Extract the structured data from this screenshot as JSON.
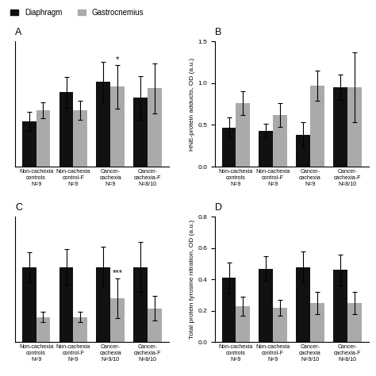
{
  "chart_data": [
    {
      "type": "bar",
      "title": "A",
      "categories": [
        "Non-cachexia\ncontrols\nN=9",
        "Non-cachexia\ncontrol-F\nN=9",
        "Cancer-\ncachexia\nN=9",
        "Cancer-\ncachexia-F\nN=8/10"
      ],
      "series": [
        {
          "name": "Diaphragm",
          "color": "#111111",
          "values": [
            0.58,
            0.95,
            1.08,
            0.88
          ],
          "errors": [
            0.12,
            0.2,
            0.26,
            0.28
          ]
        },
        {
          "name": "Gastrocnemius",
          "color": "#aaaaaa",
          "values": [
            0.72,
            0.72,
            1.02,
            1.0
          ],
          "errors": [
            0.1,
            0.12,
            0.28,
            0.32
          ],
          "sig_labels": [
            null,
            null,
            "*",
            null
          ]
        }
      ],
      "ylim": [
        0,
        1.6
      ],
      "yticks": [],
      "legend": "upper left"
    },
    {
      "type": "bar",
      "title": "B",
      "ylabel": "HNE-protein adducts, OD (a.u.)",
      "categories": [
        "Non-cachexia\ncontrols\nN=9",
        "Non-cachexia\ncontrol-F\nN=9",
        "Cancer-\ncachexia\nN=9",
        "Cancer-\ncachexia-F\nN=8/10"
      ],
      "series": [
        {
          "name": "Diaphragm",
          "color": "#111111",
          "values": [
            0.47,
            0.43,
            0.38,
            0.95
          ],
          "errors": [
            0.12,
            0.08,
            0.15,
            0.15
          ]
        },
        {
          "name": "Gastrocnemius",
          "color": "#aaaaaa",
          "values": [
            0.76,
            0.62,
            0.97,
            0.95
          ],
          "errors": [
            0.14,
            0.14,
            0.18,
            0.42
          ]
        }
      ],
      "ylim": [
        0,
        1.5
      ],
      "yticks": [
        0.0,
        0.5,
        1.0,
        1.5
      ]
    },
    {
      "type": "bar",
      "title": "C",
      "categories": [
        "Non-cachexia\ncontrols\nN=9",
        "Non-cachexia\ncontrol-F\nN=9",
        "Cancer-\ncachexia\nN=9/10",
        "Cancer-\ncachexia-F\nN=8/10"
      ],
      "series": [
        {
          "name": "Diaphragm",
          "color": "#111111",
          "values": [
            0.6,
            0.6,
            0.6,
            0.6
          ],
          "errors": [
            0.12,
            0.14,
            0.16,
            0.2
          ]
        },
        {
          "name": "Gastrocnemius",
          "color": "#aaaaaa",
          "values": [
            0.2,
            0.2,
            0.35,
            0.27
          ],
          "errors": [
            0.04,
            0.04,
            0.16,
            0.1
          ],
          "sig_labels": [
            null,
            null,
            "***",
            null
          ]
        }
      ],
      "ylim": [
        0,
        1.0
      ],
      "yticks": []
    },
    {
      "type": "bar",
      "title": "D",
      "ylabel": "Total protein tyrosine nitration, OD (a.u.)",
      "categories": [
        "Non-cachexia\ncontrols\nN=9",
        "Non-cachexia\ncontrol-F\nN=9",
        "Cancer-\ncachexia\nN=9/10",
        "Cancer-\ncachexia-F\nN=8/10"
      ],
      "series": [
        {
          "name": "Diaphragm",
          "color": "#111111",
          "values": [
            0.41,
            0.47,
            0.48,
            0.46
          ],
          "errors": [
            0.1,
            0.08,
            0.1,
            0.1
          ]
        },
        {
          "name": "Gastrocnemius",
          "color": "#aaaaaa",
          "values": [
            0.23,
            0.22,
            0.25,
            0.25
          ],
          "errors": [
            0.06,
            0.05,
            0.07,
            0.07
          ]
        }
      ],
      "ylim": [
        0,
        0.8
      ],
      "yticks": [
        0.0,
        0.2,
        0.4,
        0.6,
        0.8
      ]
    }
  ]
}
